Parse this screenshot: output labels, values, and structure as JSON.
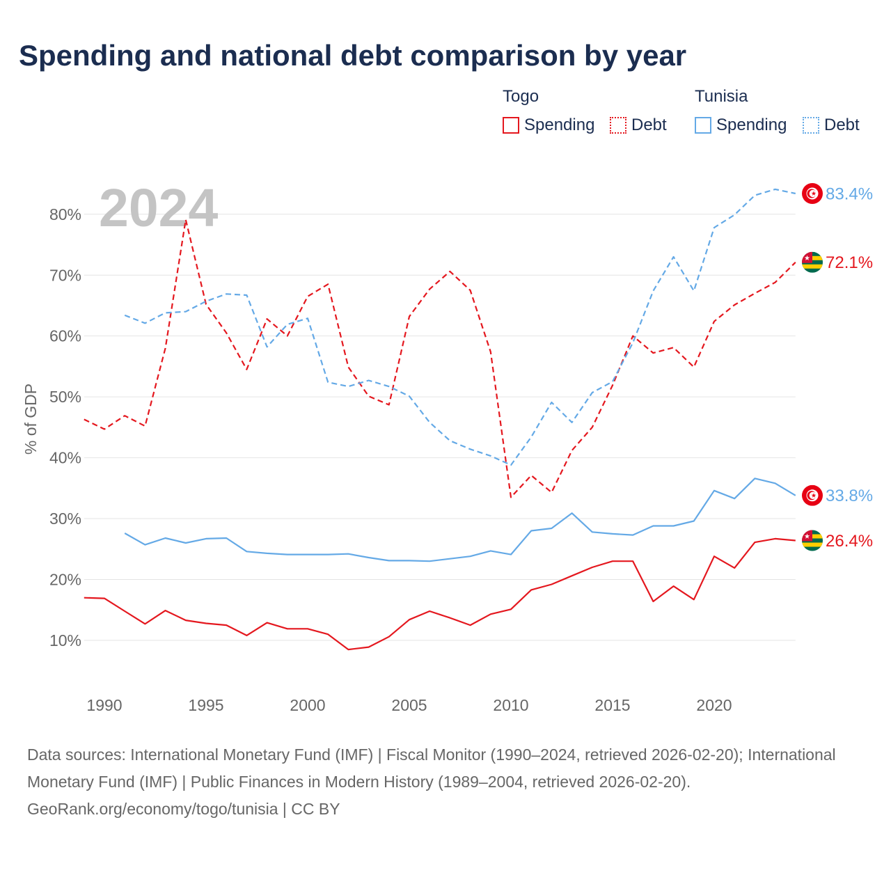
{
  "colors": {
    "togo": "#e4171e",
    "tunisia": "#64a9e6",
    "title": "#1b2d50",
    "muted_text": "#666666",
    "grid": "#e4e4e4",
    "year_label": "#c4c4c4"
  },
  "legend": {
    "groups": [
      {
        "name": "Togo",
        "items": [
          {
            "label": "Spending"
          },
          {
            "label": "Debt"
          }
        ]
      },
      {
        "name": "Tunisia",
        "items": [
          {
            "label": "Spending"
          },
          {
            "label": "Debt"
          }
        ]
      }
    ]
  },
  "year_label": "2024",
  "chart_data": {
    "type": "line",
    "title": "Spending and national debt comparison by year",
    "ylabel": "% of GDP",
    "xlim": [
      1989,
      2024
    ],
    "ylim": [
      0,
      85
    ],
    "xticks": [
      1990,
      1995,
      2000,
      2005,
      2010,
      2015,
      2020
    ],
    "xtick_labels": [
      "1990",
      "1995",
      "2000",
      "2005",
      "2010",
      "2015",
      "2020"
    ],
    "yticks": [
      10,
      20,
      30,
      40,
      50,
      60,
      70,
      80
    ],
    "ytick_labels": [
      "10%",
      "20%",
      "30%",
      "40%",
      "50%",
      "60%",
      "70%",
      "80%"
    ],
    "grid": true,
    "series": [
      {
        "group": 0,
        "item": 1,
        "dashed": true,
        "color": "#e4171e",
        "flag_icon": "togo-flag-icon",
        "start_year": 1989,
        "values": [
          46.3,
          44.7,
          46.9,
          45.2,
          58.0,
          79.1,
          65.2,
          60.5,
          54.5,
          62.8,
          60.0,
          66.5,
          68.5,
          54.9,
          50.1,
          48.7,
          63.2,
          67.7,
          70.6,
          67.5,
          57.4,
          33.5,
          37.1,
          34.3,
          41.2,
          45.0,
          51.9,
          60.0,
          57.2,
          58.1,
          54.9,
          62.4,
          65.1,
          67.0,
          68.8,
          72.1
        ],
        "end_label": "72.1%"
      },
      {
        "group": 1,
        "item": 1,
        "dashed": true,
        "color": "#64a9e6",
        "flag_icon": "tunisia-flag-icon",
        "start_year": 1991,
        "values": [
          63.4,
          62.1,
          63.8,
          64.0,
          65.7,
          66.9,
          66.7,
          58.2,
          61.9,
          62.9,
          52.4,
          51.7,
          52.7,
          51.7,
          50.1,
          45.8,
          42.8,
          41.4,
          40.3,
          38.8,
          43.4,
          49.1,
          45.8,
          50.7,
          52.5,
          58.9,
          67.4,
          73.0,
          67.4,
          77.8,
          79.9,
          83.1,
          84.1,
          83.4
        ],
        "end_label": "83.4%"
      },
      {
        "group": 0,
        "item": 0,
        "dashed": false,
        "color": "#e4171e",
        "flag_icon": "togo-flag-icon",
        "start_year": 1989,
        "values": [
          17.0,
          16.9,
          14.8,
          12.7,
          14.9,
          13.3,
          12.8,
          12.5,
          10.8,
          12.9,
          11.9,
          11.9,
          11.0,
          8.5,
          8.9,
          10.6,
          13.4,
          14.8,
          13.7,
          12.5,
          14.3,
          15.1,
          18.3,
          19.2,
          20.6,
          22.0,
          23.0,
          23.0,
          16.4,
          18.9,
          16.7,
          23.8,
          21.9,
          26.1,
          26.7,
          26.4
        ],
        "end_label": "26.4%"
      },
      {
        "group": 1,
        "item": 0,
        "dashed": false,
        "color": "#64a9e6",
        "flag_icon": "tunisia-flag-icon",
        "start_year": 1991,
        "values": [
          27.6,
          25.7,
          26.8,
          26.0,
          26.7,
          26.8,
          24.6,
          24.3,
          24.1,
          24.1,
          24.1,
          24.2,
          23.6,
          23.1,
          23.1,
          23.0,
          23.4,
          23.8,
          24.7,
          24.1,
          28.0,
          28.4,
          30.9,
          27.8,
          27.5,
          27.3,
          28.8,
          28.8,
          29.6,
          34.6,
          33.3,
          36.6,
          35.8,
          33.8
        ],
        "end_label": "33.8%"
      }
    ]
  },
  "footer": {
    "sources": "Data sources: International Monetary Fund (IMF) | Fiscal Monitor (1990–2024, retrieved 2026-02-20); International Monetary Fund (IMF) | Public Finances in Modern History (1989–2004, retrieved 2026-02-20).",
    "credit": "GeoRank.org/economy/togo/tunisia | CC BY"
  }
}
